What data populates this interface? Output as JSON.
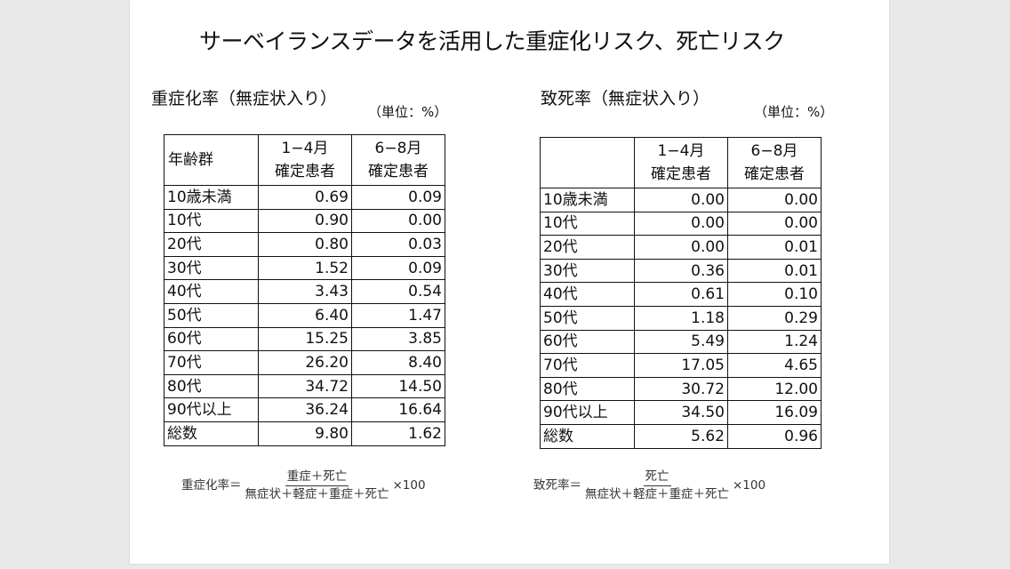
{
  "title": "サーベイランスデータを活用した重症化リスク、死亡リスク",
  "severe": {
    "heading": "重症化率（無症状入り）",
    "unit": "（単位：%）",
    "corner": "年齢群",
    "col1_line1": "1−4月",
    "col1_line2": "確定患者",
    "col2_line1": "6−8月",
    "col2_line2": "確定患者",
    "rows": [
      {
        "label": "10歳未満",
        "a": "0.69",
        "b": "0.09"
      },
      {
        "label": "10代",
        "a": "0.90",
        "b": "0.00"
      },
      {
        "label": "20代",
        "a": "0.80",
        "b": "0.03"
      },
      {
        "label": "30代",
        "a": "1.52",
        "b": "0.09"
      },
      {
        "label": "40代",
        "a": "3.43",
        "b": "0.54"
      },
      {
        "label": "50代",
        "a": "6.40",
        "b": "1.47"
      },
      {
        "label": "60代",
        "a": "15.25",
        "b": "3.85"
      },
      {
        "label": "70代",
        "a": "26.20",
        "b": "8.40"
      },
      {
        "label": "80代",
        "a": "34.72",
        "b": "14.50"
      },
      {
        "label": "90代以上",
        "a": "36.24",
        "b": "16.64"
      },
      {
        "label": "総数",
        "a": "9.80",
        "b": "1.62"
      }
    ],
    "formula_lhs": "重症化率＝",
    "formula_num": "重症＋死亡",
    "formula_den": "無症状＋軽症＋重症＋死亡",
    "formula_mult": "×100"
  },
  "death": {
    "heading": "致死率（無症状入り）",
    "unit": "（単位：%）",
    "corner": "",
    "col1_line1": "1−4月",
    "col1_line2": "確定患者",
    "col2_line1": "6−8月",
    "col2_line2": "確定患者",
    "rows": [
      {
        "label": "10歳未満",
        "a": "0.00",
        "b": "0.00"
      },
      {
        "label": "10代",
        "a": "0.00",
        "b": "0.00"
      },
      {
        "label": "20代",
        "a": "0.00",
        "b": "0.01"
      },
      {
        "label": "30代",
        "a": "0.36",
        "b": "0.01"
      },
      {
        "label": "40代",
        "a": "0.61",
        "b": "0.10"
      },
      {
        "label": "50代",
        "a": "1.18",
        "b": "0.29"
      },
      {
        "label": "60代",
        "a": "5.49",
        "b": "1.24"
      },
      {
        "label": "70代",
        "a": "17.05",
        "b": "4.65"
      },
      {
        "label": "80代",
        "a": "30.72",
        "b": "12.00"
      },
      {
        "label": "90代以上",
        "a": "34.50",
        "b": "16.09"
      },
      {
        "label": "総数",
        "a": "5.62",
        "b": "0.96"
      }
    ],
    "formula_lhs": "致死率＝",
    "formula_num": "死亡",
    "formula_den": "無症状＋軽症＋重症＋死亡",
    "formula_mult": "×100"
  }
}
